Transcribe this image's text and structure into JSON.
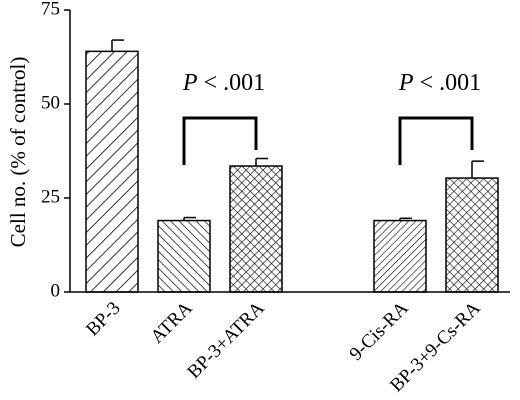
{
  "chart_data": {
    "type": "bar",
    "ylabel": "Cell no. (% of control)",
    "categories": [
      "BP-3",
      "ATRA",
      "BP-3+ATRA",
      null,
      "9-Cis-RA",
      "BP-3+9-Cs-RA"
    ],
    "values": [
      64,
      19,
      33.5,
      null,
      19,
      30.3
    ],
    "errors": [
      3,
      0.8,
      2,
      null,
      0.6,
      4.5
    ],
    "color": "#000000",
    "ylim": [
      0,
      75
    ],
    "yticks": [
      0,
      25,
      50,
      75
    ],
    "annotations": [
      {
        "italic": "P",
        "text": "< .001"
      },
      {
        "italic": "P",
        "text": "< .001"
      }
    ]
  }
}
